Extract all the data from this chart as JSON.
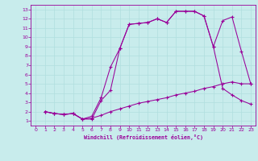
{
  "xlabel": "Windchill (Refroidissement éolien,°C)",
  "bg_color": "#c8ecec",
  "line_color": "#990099",
  "grid_color": "#b0dede",
  "xlim": [
    -0.5,
    23.5
  ],
  "ylim": [
    0.5,
    13.5
  ],
  "xticks": [
    0,
    1,
    2,
    3,
    4,
    5,
    6,
    7,
    8,
    9,
    10,
    11,
    12,
    13,
    14,
    15,
    16,
    17,
    18,
    19,
    20,
    21,
    22,
    23
  ],
  "yticks": [
    1,
    2,
    3,
    4,
    5,
    6,
    7,
    8,
    9,
    10,
    11,
    12,
    13
  ],
  "curve1_x": [
    1,
    2,
    3,
    4,
    5,
    6,
    7,
    8,
    9,
    10,
    11,
    12,
    13,
    14,
    15,
    16,
    17,
    18,
    19,
    20,
    21,
    22,
    23
  ],
  "curve1_y": [
    2,
    1.8,
    1.7,
    1.8,
    1.2,
    1.2,
    3.2,
    4.3,
    8.8,
    11.4,
    11.5,
    11.6,
    12.0,
    11.6,
    12.8,
    12.8,
    12.8,
    12.3,
    9.0,
    11.8,
    12.2,
    8.5,
    5.0
  ],
  "curve2_x": [
    1,
    2,
    3,
    4,
    5,
    6,
    7,
    8,
    9,
    10,
    11,
    12,
    13,
    14,
    15,
    16,
    17,
    18,
    19,
    20,
    21,
    22,
    23
  ],
  "curve2_y": [
    2,
    1.8,
    1.7,
    1.8,
    1.2,
    1.3,
    1.6,
    2.0,
    2.3,
    2.6,
    2.9,
    3.1,
    3.3,
    3.5,
    3.8,
    4.0,
    4.2,
    4.5,
    4.7,
    5.0,
    5.2,
    5.0,
    5.0
  ],
  "curve3_x": [
    1,
    2,
    3,
    4,
    5,
    6,
    7,
    8,
    9,
    10,
    11,
    12,
    13,
    14,
    15,
    16,
    17,
    18,
    19,
    20,
    21,
    22,
    23
  ],
  "curve3_y": [
    2,
    1.8,
    1.7,
    1.8,
    1.2,
    1.5,
    3.5,
    6.8,
    8.8,
    11.4,
    11.5,
    11.6,
    12.0,
    11.6,
    12.8,
    12.8,
    12.8,
    12.3,
    9.0,
    4.5,
    3.8,
    3.2,
    2.8
  ]
}
